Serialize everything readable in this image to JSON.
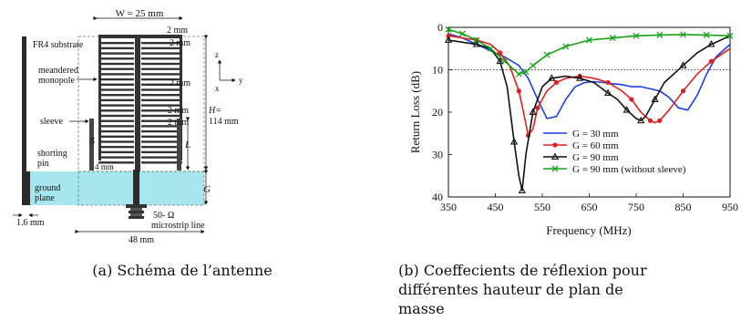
{
  "panel_a": {
    "width_label": "W = 25 mm",
    "gap_label": "2 mm",
    "substrate_label": "FR4 substrate",
    "monopole_label": [
      "meandered",
      "monopole"
    ],
    "sleeve_label": "sleeve",
    "shorting_label": [
      "shorting",
      "pin"
    ],
    "ground_label": [
      "ground",
      "plane"
    ],
    "thickness_label": "1.6 mm",
    "s_label": "S",
    "pitch_label_1": "2 mm",
    "pitch_label_2": "2 mm",
    "pitch_label_3": "2 mm",
    "sleeve_gap_label": "2 mm",
    "pin_label": "4 mm",
    "h_label": [
      "H=",
      "114 mm"
    ],
    "l_label": "L",
    "g_label": "G",
    "feed_label": [
      "50- Ω",
      "microstrip line"
    ],
    "board_width_label": "48 mm",
    "axis_z": "z",
    "axis_y": "y",
    "axis_x": "x",
    "caption": "(a) Schéma de l’antenne"
  },
  "panel_b": {
    "caption_lines": [
      "(b) Coeffecients de réflexion pour",
      "différentes hauteur de plan de",
      "masse"
    ]
  },
  "chart_data": {
    "type": "line",
    "xlabel": "Frequency (MHz)",
    "ylabel": "Return Loss (dB)",
    "xlim": [
      350,
      950
    ],
    "ylim": [
      0,
      40
    ],
    "y_inverted": true,
    "xticks": [
      350,
      450,
      550,
      650,
      750,
      850,
      950
    ],
    "yticks": [
      0,
      10,
      20,
      30,
      40
    ],
    "reference_line": {
      "y": 10,
      "style": "dotted"
    },
    "grid": false,
    "legend_position": "center-right",
    "series": [
      {
        "name": "G = 30 mm",
        "color": "#1f3fe0",
        "marker": "none",
        "x": [
          350,
          380,
          410,
          440,
          470,
          500,
          520,
          540,
          560,
          580,
          600,
          620,
          640,
          660,
          680,
          700,
          720,
          740,
          760,
          780,
          800,
          820,
          840,
          860,
          880,
          900,
          920,
          950
        ],
        "y": [
          1.5,
          2.5,
          4,
          5.5,
          7,
          9,
          12,
          17,
          21.5,
          21,
          17,
          14,
          13,
          12.8,
          13,
          13.3,
          13.5,
          14,
          14,
          14.5,
          15,
          16.5,
          19,
          19.5,
          16,
          11,
          7,
          4
        ]
      },
      {
        "name": "G = 60 mm",
        "color": "#e02020",
        "marker": "circle",
        "x": [
          350,
          380,
          410,
          440,
          460,
          480,
          500,
          510,
          520,
          530,
          540,
          560,
          580,
          600,
          630,
          660,
          690,
          720,
          740,
          760,
          780,
          790,
          800,
          820,
          850,
          880,
          910,
          950
        ],
        "y": [
          2,
          2.5,
          3,
          4,
          6,
          9,
          15,
          20,
          25.5,
          24,
          19,
          15,
          13,
          12,
          11.5,
          12,
          13,
          15,
          17,
          20,
          22,
          22.5,
          22,
          19.5,
          15,
          11,
          8,
          5
        ]
      },
      {
        "name": "G = 90 mm",
        "color": "#111111",
        "marker": "triangle",
        "x": [
          350,
          380,
          410,
          440,
          460,
          475,
          490,
          500,
          507,
          515,
          530,
          550,
          570,
          600,
          630,
          660,
          690,
          710,
          730,
          750,
          760,
          770,
          790,
          810,
          850,
          880,
          910,
          950
        ],
        "y": [
          3,
          3.5,
          4,
          5,
          8,
          14,
          27,
          35,
          38.5,
          30,
          20,
          14,
          12,
          11.5,
          12,
          13,
          15.5,
          17,
          19.5,
          21.5,
          22,
          21,
          17,
          13,
          9,
          6,
          4,
          2
        ]
      },
      {
        "name": "G = 90 mm (without sleeve)",
        "color": "#17a317",
        "marker": "x",
        "x": [
          350,
          380,
          410,
          440,
          470,
          500,
          515,
          530,
          560,
          600,
          650,
          700,
          750,
          800,
          850,
          900,
          950
        ],
        "y": [
          0.5,
          1.5,
          3,
          5,
          8,
          11,
          10.5,
          9,
          6.5,
          4.5,
          3,
          2.5,
          2,
          1.8,
          1.7,
          1.8,
          2
        ]
      }
    ]
  }
}
